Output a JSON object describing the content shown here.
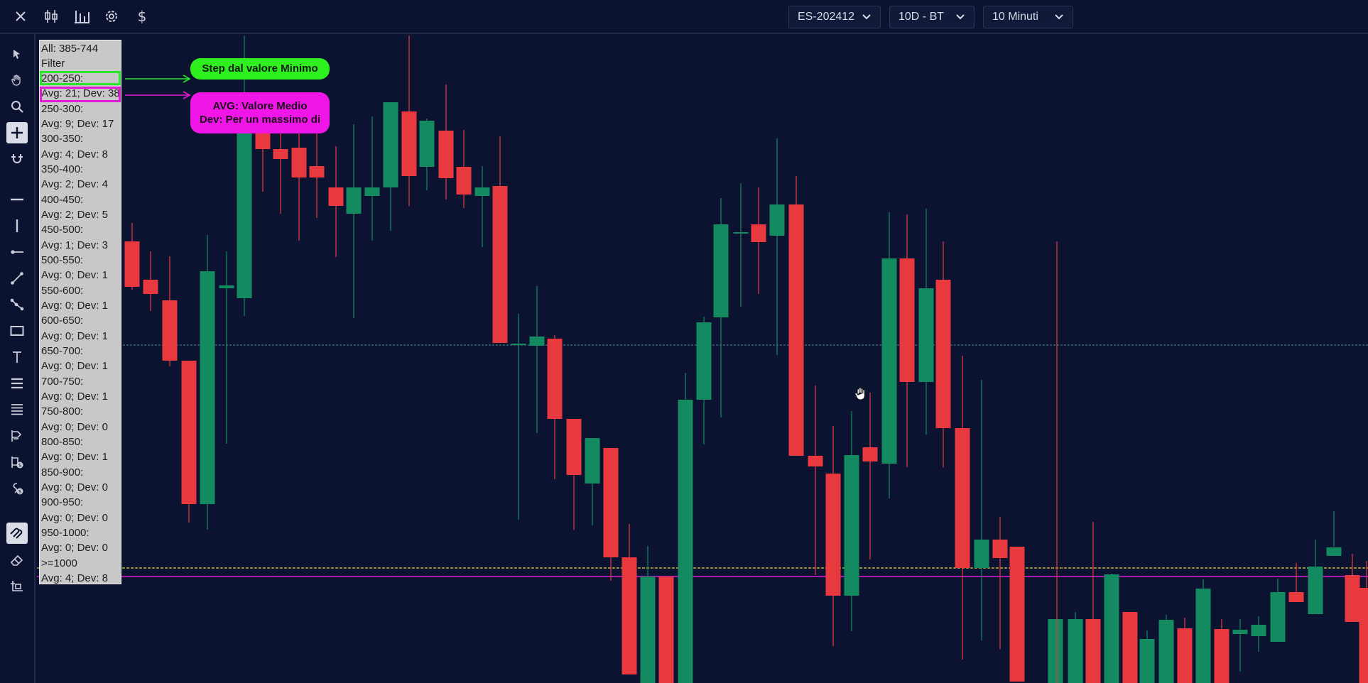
{
  "toolbar": {
    "close_icon": "close-icon",
    "candles_icon": "candles-icon",
    "bars_icon": "bar-chart-icon",
    "settings_icon": "gear-icon",
    "currency_symbol": "$"
  },
  "selectors": {
    "symbol": "ES-202412",
    "range": "10D - BT",
    "timeframe": "10 Minuti"
  },
  "drawing_tools": [
    "cursor-icon",
    "hand-icon",
    "zoom-icon",
    "crosshair-icon",
    "magnet-icon",
    "horizontal-line-icon",
    "vertical-line-icon",
    "ray-icon",
    "trend-line-icon",
    "path-icon",
    "rectangle-icon",
    "text-icon",
    "lines-icon",
    "list-icon",
    "long-position-icon",
    "price-alert-icon",
    "time-alert-icon",
    "lock-magnet-icon",
    "eraser-icon",
    "delete-drawings-icon"
  ],
  "stats_panel": {
    "title": "All: 385-744",
    "filter_label": "Filter",
    "rows": [
      {
        "range": "200-250:",
        "stats": "Avg: 21; Dev: 38"
      },
      {
        "range": "250-300:",
        "stats": "Avg: 9; Dev: 17"
      },
      {
        "range": "300-350:",
        "stats": "Avg: 4; Dev: 8"
      },
      {
        "range": "350-400:",
        "stats": "Avg: 2; Dev: 4"
      },
      {
        "range": "400-450:",
        "stats": "Avg: 2; Dev: 5"
      },
      {
        "range": "450-500:",
        "stats": "Avg: 1; Dev: 3"
      },
      {
        "range": "500-550:",
        "stats": "Avg: 0; Dev: 1"
      },
      {
        "range": "550-600:",
        "stats": "Avg: 0; Dev: 1"
      },
      {
        "range": "600-650:",
        "stats": "Avg: 0; Dev: 1"
      },
      {
        "range": "650-700:",
        "stats": "Avg: 0; Dev: 1"
      },
      {
        "range": "700-750:",
        "stats": "Avg: 0; Dev: 1"
      },
      {
        "range": "750-800:",
        "stats": "Avg: 0; Dev: 0"
      },
      {
        "range": "800-850:",
        "stats": "Avg: 0; Dev: 1"
      },
      {
        "range": "850-900:",
        "stats": "Avg: 0; Dev: 0"
      },
      {
        "range": "900-950:",
        "stats": "Avg: 0; Dev: 0"
      },
      {
        "range": "950-1000:",
        "stats": "Avg: 0; Dev: 0"
      },
      {
        "range": ">=1000",
        "stats": "Avg: 4; Dev: 8"
      }
    ]
  },
  "annotations": {
    "green_callout": "Step dal valore Minimo",
    "magenta_callout_line1": "AVG: Valore Medio",
    "magenta_callout_line2": "Dev: Per un massimo di"
  },
  "colors": {
    "background": "#0c1330",
    "bull": "#138a5f",
    "bear": "#e8393e",
    "green_annotation": "#29e82c",
    "magenta_annotation": "#e21bd6",
    "yellow_level": "#e9d23a",
    "cyan_level": "#4b8c96"
  }
}
